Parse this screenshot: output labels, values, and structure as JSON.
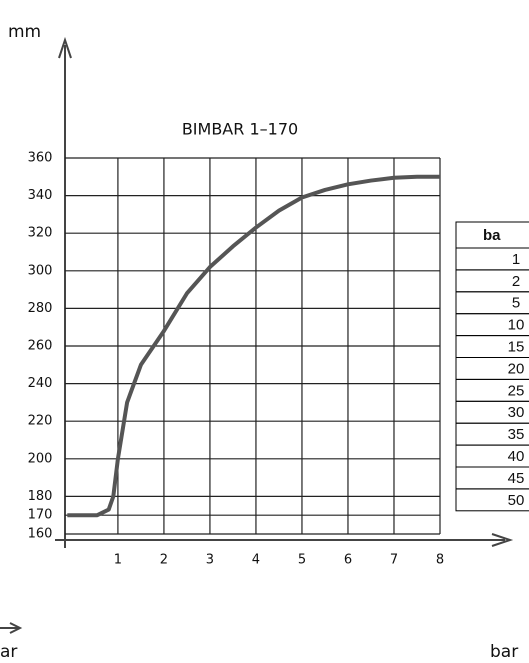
{
  "chart_data": {
    "type": "line",
    "title": "BIMBAR 1–170",
    "x_label": "bar",
    "y_label": "mm",
    "annotations": [
      "ar"
    ],
    "x": [
      -0.1,
      0.55,
      0.8,
      0.9,
      1.0,
      1.2,
      1.5,
      2,
      2.5,
      3,
      3.5,
      4,
      4.5,
      5,
      5.5,
      6,
      6.5,
      7,
      7.5,
      8
    ],
    "series": [
      {
        "name": "BIMBAR 1–170",
        "color": "#555555",
        "values": [
          170,
          170,
          173,
          180,
          200,
          230,
          250,
          268,
          288,
          302,
          313,
          323,
          332,
          339,
          343,
          346,
          348,
          349.5,
          350,
          350
        ]
      }
    ],
    "xlim": [
      -0.15,
      8
    ],
    "xticks": [
      1,
      2,
      3,
      4,
      5,
      6,
      7,
      8
    ],
    "ylim": [
      160,
      360
    ],
    "yticks": [
      160,
      170,
      180,
      200,
      220,
      240,
      260,
      280,
      300,
      320,
      340,
      360
    ],
    "grid": true
  },
  "table": {
    "header": "ba",
    "rows": [
      "1",
      "2",
      "5",
      "10",
      "15",
      "20",
      "25",
      "30",
      "35",
      "40",
      "45",
      "50"
    ]
  }
}
